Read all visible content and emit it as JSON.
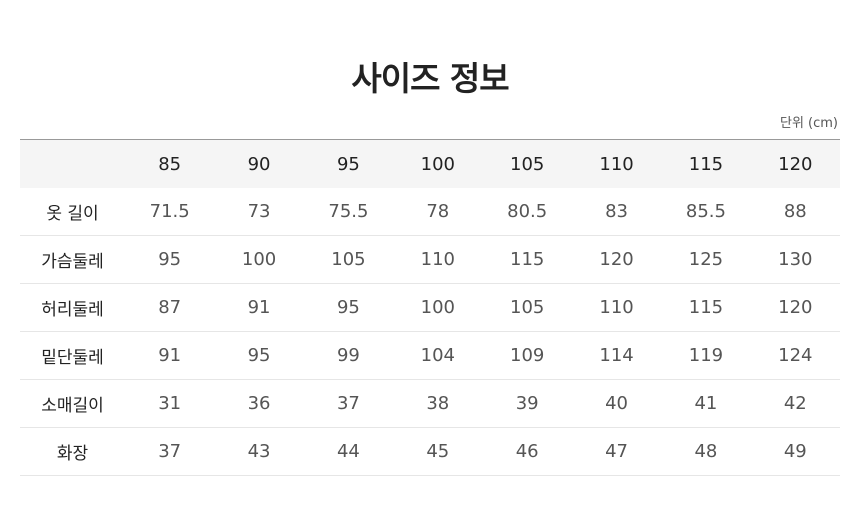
{
  "title": "사이즈 정보",
  "unit": "단위 (cm)",
  "table": {
    "headers": [
      "",
      "85",
      "90",
      "95",
      "100",
      "105",
      "110",
      "115",
      "120"
    ],
    "rows": [
      {
        "label": "옷 길이",
        "values": [
          "71.5",
          "73",
          "75.5",
          "78",
          "80.5",
          "83",
          "85.5",
          "88"
        ]
      },
      {
        "label": "가슴둘레",
        "values": [
          "95",
          "100",
          "105",
          "110",
          "115",
          "120",
          "125",
          "130"
        ]
      },
      {
        "label": "허리둘레",
        "values": [
          "87",
          "91",
          "95",
          "100",
          "105",
          "110",
          "115",
          "120"
        ]
      },
      {
        "label": "밑단둘레",
        "values": [
          "91",
          "95",
          "99",
          "104",
          "109",
          "114",
          "119",
          "124"
        ]
      },
      {
        "label": "소매길이",
        "values": [
          "31",
          "36",
          "37",
          "38",
          "39",
          "40",
          "41",
          "42"
        ]
      },
      {
        "label": "화장",
        "values": [
          "37",
          "43",
          "44",
          "45",
          "46",
          "47",
          "48",
          "49"
        ]
      }
    ]
  }
}
